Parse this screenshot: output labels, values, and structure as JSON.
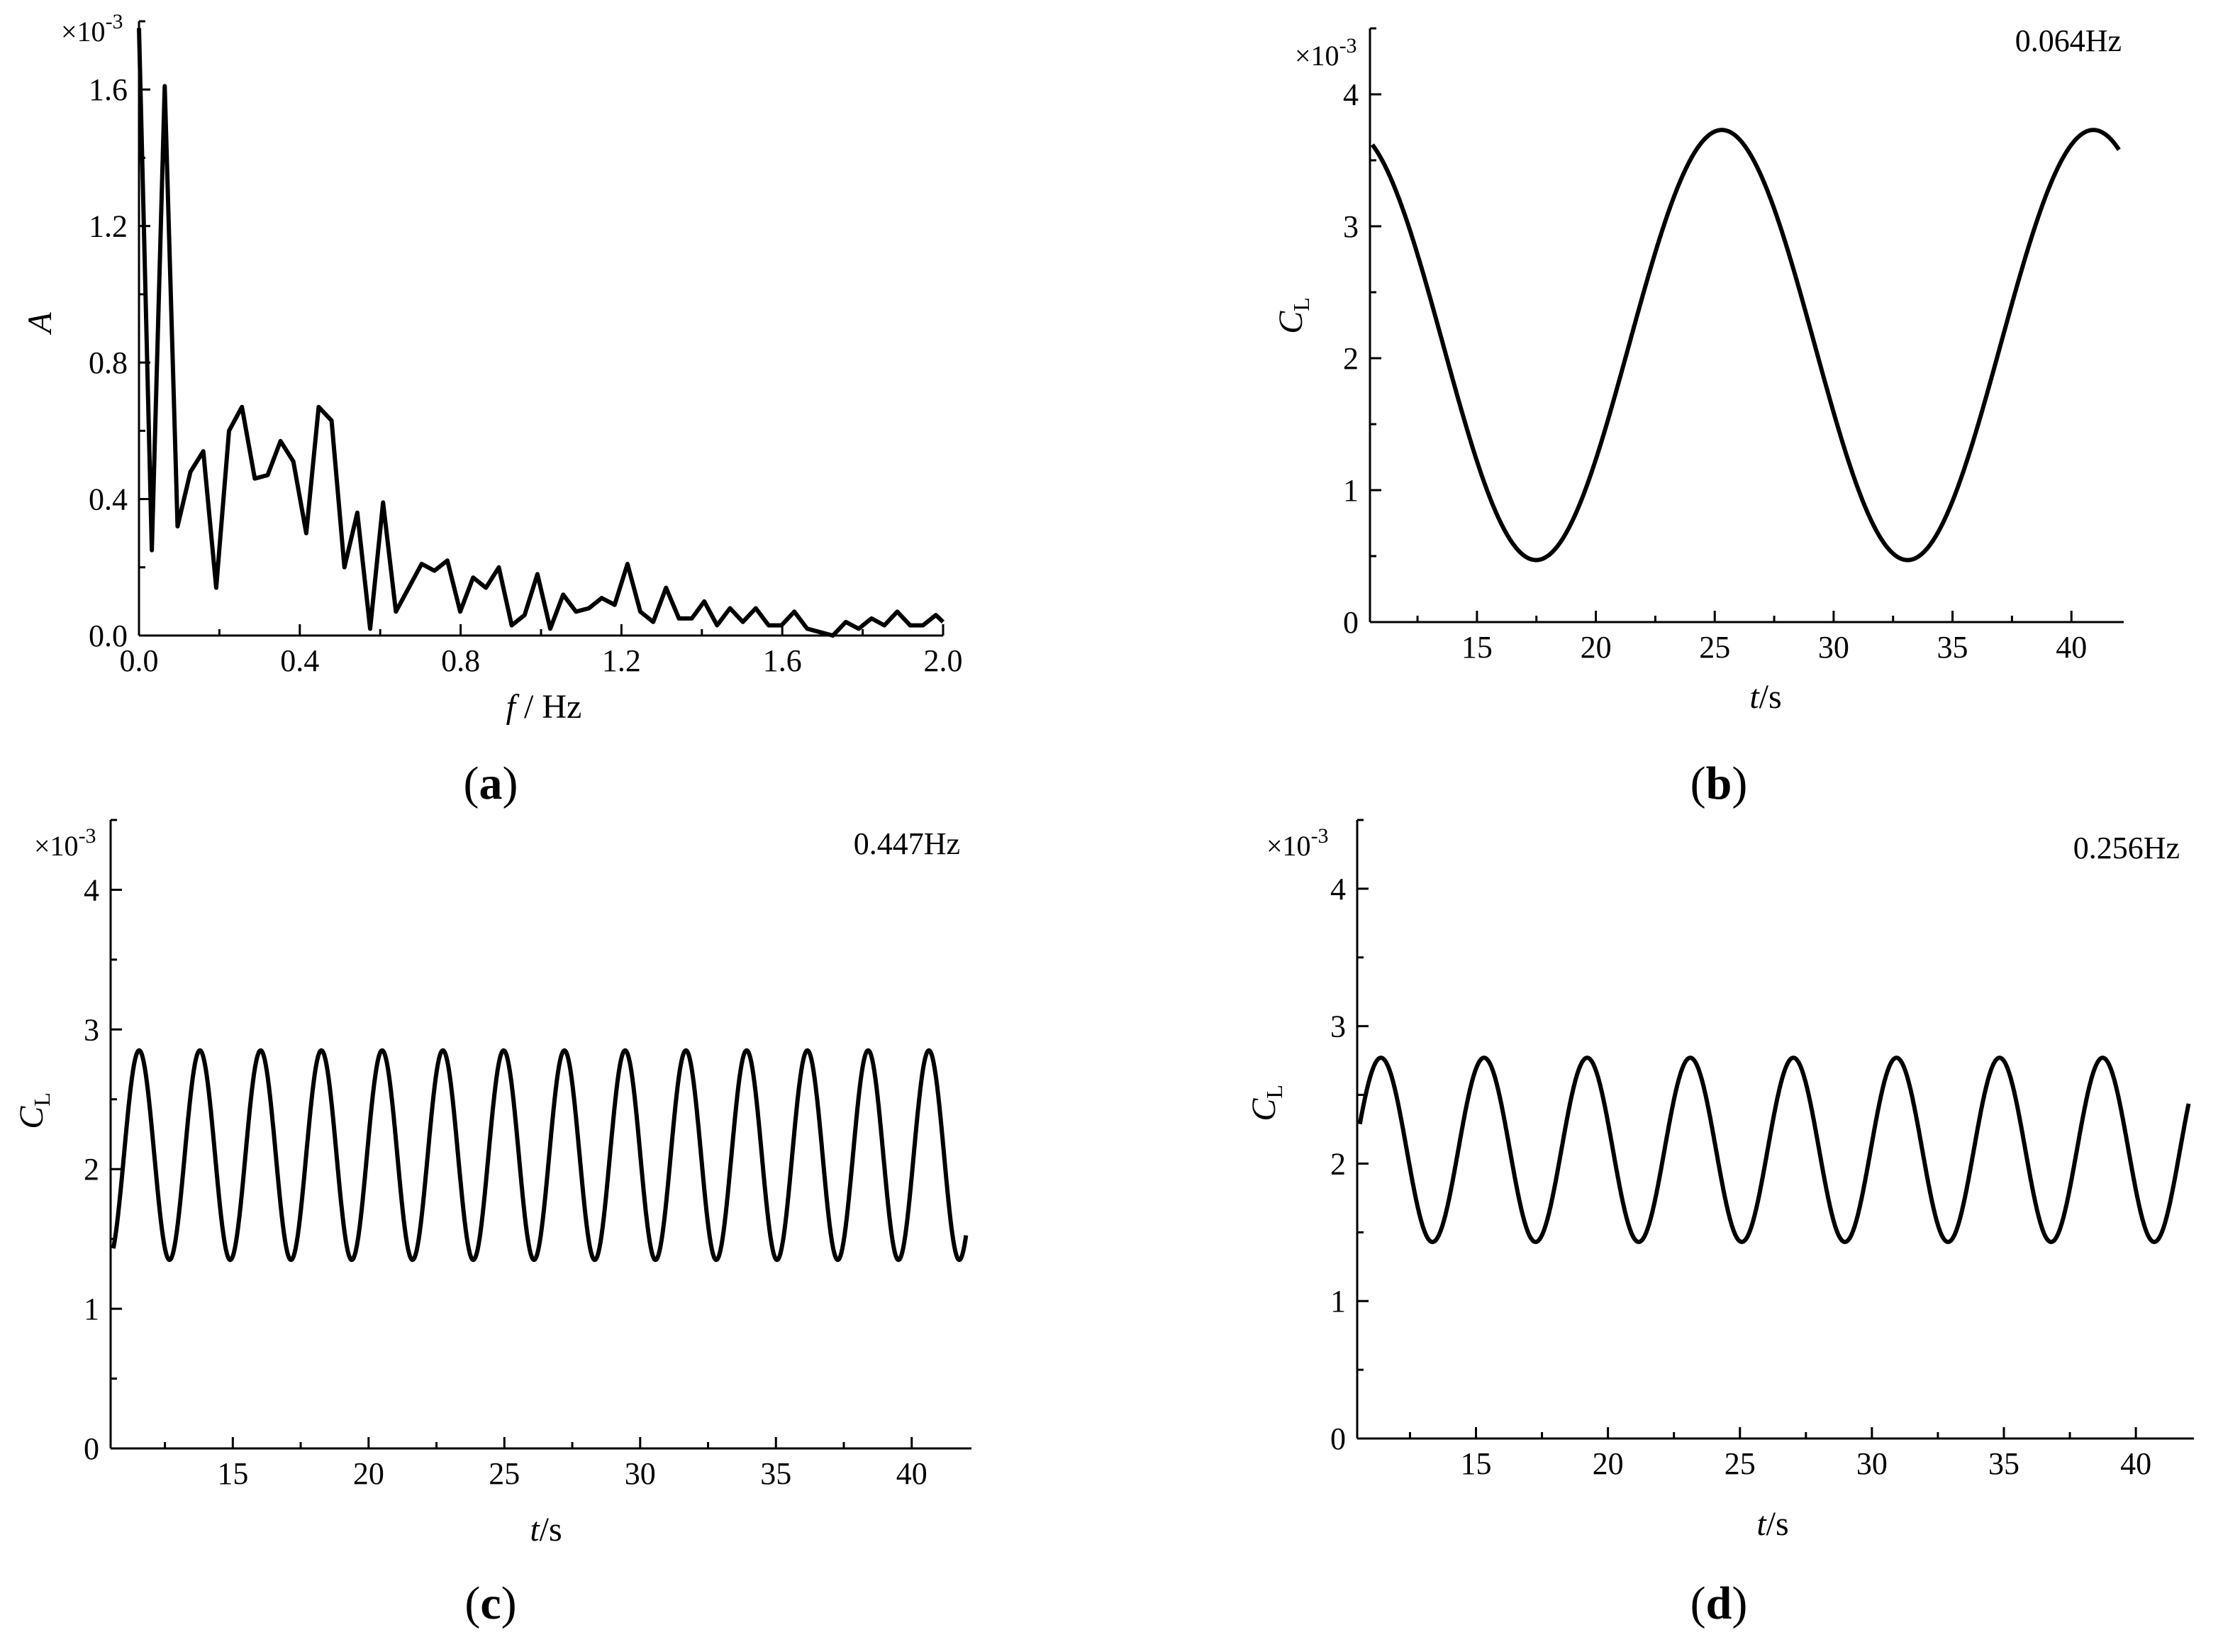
{
  "figure": {
    "panels": [
      {
        "id": "a",
        "caption_open": "(",
        "caption_letter": "a",
        "caption_close": ")",
        "ylabel": "A",
        "xlabel_var": "f",
        "xlabel_unit": " / Hz",
        "multiplier": "×10",
        "multiplier_exp": "-3",
        "note": ""
      },
      {
        "id": "b",
        "caption_open": "(",
        "caption_letter": "b",
        "caption_close": ")",
        "ylabel": "C",
        "ylabel_sub": "L",
        "xlabel_var": "t",
        "xlabel_unit": "/s",
        "multiplier": "×10",
        "multiplier_exp": "-3",
        "note": "0.064Hz"
      },
      {
        "id": "c",
        "caption_open": "(",
        "caption_letter": "c",
        "caption_close": ")",
        "ylabel": "C",
        "ylabel_sub": "L",
        "xlabel_var": "t",
        "xlabel_unit": "/s",
        "multiplier": "×10",
        "multiplier_exp": "-3",
        "note": "0.447Hz"
      },
      {
        "id": "d",
        "caption_open": "(",
        "caption_letter": "d",
        "caption_close": ")",
        "ylabel": "C",
        "ylabel_sub": "L",
        "xlabel_var": "t",
        "xlabel_unit": "/s",
        "multiplier": "×10",
        "multiplier_exp": "-3",
        "note": "0.256Hz"
      }
    ]
  },
  "chart_data": [
    {
      "panel": "a",
      "type": "line",
      "xlabel": "f / Hz",
      "ylabel": "A",
      "y_multiplier": "×10-3",
      "xlim": [
        0,
        2.0
      ],
      "ylim": [
        0,
        1.8
      ],
      "xticks": [
        0.0,
        0.4,
        0.8,
        1.2,
        1.6,
        2.0
      ],
      "xtick_labels": [
        "0.0",
        "0.4",
        "0.8",
        "1.2",
        "1.6",
        "2.0"
      ],
      "yticks": [
        0.0,
        0.4,
        0.8,
        1.2,
        1.6
      ],
      "ytick_labels": [
        "0.0",
        "0.4",
        "0.8",
        "1.2",
        "1.6"
      ],
      "x": [
        0.0,
        0.032,
        0.064,
        0.096,
        0.128,
        0.16,
        0.192,
        0.224,
        0.256,
        0.288,
        0.32,
        0.352,
        0.384,
        0.416,
        0.447,
        0.479,
        0.511,
        0.543,
        0.575,
        0.607,
        0.639,
        0.671,
        0.703,
        0.735,
        0.767,
        0.799,
        0.831,
        0.863,
        0.895,
        0.927,
        0.959,
        0.991,
        1.023,
        1.055,
        1.087,
        1.119,
        1.151,
        1.183,
        1.215,
        1.247,
        1.279,
        1.311,
        1.343,
        1.375,
        1.406,
        1.438,
        1.47,
        1.502,
        1.534,
        1.566,
        1.598,
        1.63,
        1.662,
        1.694,
        1.726,
        1.758,
        1.79,
        1.822,
        1.854,
        1.886,
        1.918,
        1.95,
        1.982,
        2.0
      ],
      "values": [
        1.78,
        0.25,
        1.61,
        0.32,
        0.48,
        0.54,
        0.14,
        0.6,
        0.67,
        0.46,
        0.47,
        0.57,
        0.51,
        0.3,
        0.67,
        0.63,
        0.2,
        0.36,
        0.02,
        0.39,
        0.07,
        0.14,
        0.21,
        0.19,
        0.22,
        0.07,
        0.17,
        0.14,
        0.2,
        0.03,
        0.06,
        0.18,
        0.02,
        0.12,
        0.07,
        0.08,
        0.11,
        0.09,
        0.21,
        0.07,
        0.04,
        0.14,
        0.05,
        0.05,
        0.1,
        0.03,
        0.08,
        0.04,
        0.08,
        0.03,
        0.03,
        0.07,
        0.02,
        0.01,
        0.0,
        0.04,
        0.02,
        0.05,
        0.03,
        0.07,
        0.03,
        0.03,
        0.06,
        0.04
      ]
    },
    {
      "panel": "b",
      "type": "line",
      "xlabel": "t/s",
      "ylabel": "CL",
      "y_multiplier": "×10-3",
      "annotation": "0.064Hz",
      "xlim": [
        10.5,
        42.2
      ],
      "ylim": [
        0,
        4.5
      ],
      "xticks": [
        15,
        20,
        25,
        30,
        35,
        40
      ],
      "xtick_labels": [
        "15",
        "20",
        "25",
        "30",
        "35",
        "40"
      ],
      "yticks": [
        0,
        1,
        2,
        3,
        4
      ],
      "ytick_labels": [
        "0",
        "1",
        "2",
        "3",
        "4"
      ],
      "series": [
        {
          "function": "sine",
          "mean": 2.1,
          "amplitude": 1.63,
          "frequency_hz": 0.064,
          "peak_t": 25.3,
          "t_start": 10.6,
          "t_end": 42.0
        }
      ]
    },
    {
      "panel": "c",
      "type": "line",
      "xlabel": "t/s",
      "ylabel": "CL",
      "y_multiplier": "×10-3",
      "annotation": "0.447Hz",
      "xlim": [
        10.5,
        42.2
      ],
      "ylim": [
        0,
        4.5
      ],
      "xticks": [
        15,
        20,
        25,
        30,
        35,
        40
      ],
      "xtick_labels": [
        "15",
        "20",
        "25",
        "30",
        "35",
        "40"
      ],
      "yticks": [
        0,
        1,
        2,
        3,
        4
      ],
      "ytick_labels": [
        "0",
        "1",
        "2",
        "3",
        "4"
      ],
      "series": [
        {
          "function": "sine",
          "mean": 2.1,
          "amplitude": 0.75,
          "frequency_hz": 0.447,
          "peak_t": 11.55,
          "t_start": 10.6,
          "t_end": 42.0
        }
      ]
    },
    {
      "panel": "d",
      "type": "line",
      "xlabel": "t/s",
      "ylabel": "CL",
      "y_multiplier": "×10-3",
      "annotation": "0.256Hz",
      "xlim": [
        10.5,
        42.2
      ],
      "ylim": [
        0,
        4.5
      ],
      "xticks": [
        15,
        20,
        25,
        30,
        35,
        40
      ],
      "xtick_labels": [
        "15",
        "20",
        "25",
        "30",
        "35",
        "40"
      ],
      "yticks": [
        0,
        1,
        2,
        3,
        4
      ],
      "ytick_labels": [
        "0",
        "1",
        "2",
        "3",
        "4"
      ],
      "series": [
        {
          "function": "sine",
          "mean": 2.1,
          "amplitude": 0.67,
          "frequency_hz": 0.256,
          "peak_t": 11.4,
          "t_start": 10.6,
          "t_end": 42.0
        }
      ]
    }
  ]
}
